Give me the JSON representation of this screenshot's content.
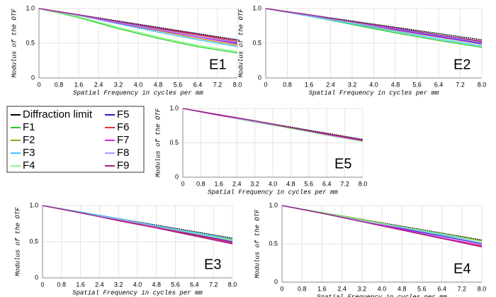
{
  "chart_data": [
    {
      "type": "line",
      "title": "E1",
      "xlabel": "Spatial Frequency in cycles per mm",
      "ylabel": "Modulus of the OTF",
      "x": [
        0,
        1.6,
        3.2,
        4.8,
        6.4,
        8
      ],
      "xlim": [
        0,
        8
      ],
      "ylim": [
        0,
        1
      ],
      "xticks": [
        0,
        0.8,
        1.6,
        2.4,
        3.2,
        {
          "value": 4,
          "label": "4.0"
        },
        4.8,
        5.6,
        6.4,
        7.2,
        {
          "value": 8,
          "label": "8.0"
        }
      ],
      "yticks": [
        0,
        0.5,
        {
          "value": 1,
          "label": "1.0"
        }
      ],
      "grid": true,
      "series": [
        {
          "name": "Diffraction limit",
          "color": "#000000",
          "values": [
            1,
            0.91,
            0.82,
            0.73,
            0.64,
            0.55
          ]
        },
        {
          "name": "F1",
          "color": "#22cc22",
          "values": [
            1,
            0.87,
            0.71,
            0.57,
            0.45,
            0.36
          ]
        },
        {
          "name": "F2",
          "color": "#a0a020",
          "values": [
            1,
            0.9,
            0.79,
            0.68,
            0.57,
            0.47
          ]
        },
        {
          "name": "F3",
          "color": "#40c0ff",
          "values": [
            1,
            0.9,
            0.78,
            0.66,
            0.55,
            0.45
          ]
        },
        {
          "name": "F4",
          "color": "#80ff80",
          "values": [
            1,
            0.88,
            0.73,
            0.59,
            0.47,
            0.38
          ]
        },
        {
          "name": "F5",
          "color": "#2020c0",
          "values": [
            1,
            0.9,
            0.8,
            0.7,
            0.6,
            0.5
          ]
        },
        {
          "name": "F6",
          "color": "#e03030",
          "values": [
            1,
            0.9,
            0.81,
            0.71,
            0.62,
            0.52
          ]
        },
        {
          "name": "F7",
          "color": "#e020e0",
          "values": [
            1,
            0.9,
            0.79,
            0.69,
            0.59,
            0.49
          ]
        },
        {
          "name": "F8",
          "color": "#a0a0ff",
          "values": [
            1,
            0.9,
            0.8,
            0.7,
            0.6,
            0.51
          ]
        },
        {
          "name": "F9",
          "color": "#a02080",
          "values": [
            1,
            0.91,
            0.81,
            0.72,
            0.63,
            0.54
          ]
        }
      ]
    },
    {
      "type": "line",
      "title": "E2",
      "xlabel": "Spatial Frequency in cycles per mm",
      "ylabel": "Modulus of the OTF",
      "x": [
        0,
        1.6,
        3.2,
        4.8,
        6.4,
        8
      ],
      "xlim": [
        0,
        8
      ],
      "ylim": [
        0,
        1
      ],
      "xticks": [
        0,
        0.8,
        1.6,
        2.4,
        3.2,
        {
          "value": 4,
          "label": "4.0"
        },
        4.8,
        5.6,
        6.4,
        7.2,
        {
          "value": 8,
          "label": "8.0"
        }
      ],
      "yticks": [
        0,
        0.5,
        {
          "value": 1,
          "label": "1.0"
        }
      ],
      "grid": true,
      "series": [
        {
          "color": "#000000",
          "values": [
            1,
            0.91,
            0.82,
            0.73,
            0.64,
            0.55
          ]
        },
        {
          "color": "#22cc22",
          "values": [
            1,
            0.89,
            0.77,
            0.65,
            0.54,
            0.44
          ]
        },
        {
          "color": "#a0a020",
          "values": [
            1,
            0.9,
            0.8,
            0.7,
            0.6,
            0.51
          ]
        },
        {
          "color": "#40c0ff",
          "values": [
            1,
            0.89,
            0.78,
            0.67,
            0.56,
            0.46
          ]
        },
        {
          "color": "#80ff80",
          "values": [
            1,
            0.9,
            0.79,
            0.68,
            0.58,
            0.48
          ]
        },
        {
          "color": "#2020c0",
          "values": [
            1,
            0.9,
            0.8,
            0.7,
            0.6,
            0.5
          ]
        },
        {
          "color": "#e03030",
          "values": [
            1,
            0.9,
            0.81,
            0.71,
            0.62,
            0.52
          ]
        },
        {
          "color": "#e020e0",
          "values": [
            1,
            0.9,
            0.8,
            0.69,
            0.59,
            0.49
          ]
        },
        {
          "color": "#a0a0ff",
          "values": [
            1,
            0.9,
            0.8,
            0.71,
            0.61,
            0.51
          ]
        },
        {
          "color": "#a02080",
          "values": [
            1,
            0.91,
            0.81,
            0.72,
            0.62,
            0.53
          ]
        }
      ]
    },
    {
      "type": "line",
      "title": "E5",
      "xlabel": "Spatial Frequency in cycles per mm",
      "ylabel": "Modulus of the OTF",
      "x": [
        0,
        1.6,
        3.2,
        4.8,
        6.4,
        8
      ],
      "xlim": [
        0,
        8
      ],
      "ylim": [
        0,
        1
      ],
      "xticks": [
        0,
        0.8,
        1.6,
        2.4,
        3.2,
        {
          "value": 4,
          "label": "4.0"
        },
        4.8,
        5.6,
        6.4,
        7.2,
        {
          "value": 8,
          "label": "8.0"
        }
      ],
      "yticks": [
        0,
        0.5,
        {
          "value": 1,
          "label": "1.0"
        }
      ],
      "grid": true,
      "series": [
        {
          "color": "#000000",
          "values": [
            1,
            0.91,
            0.82,
            0.73,
            0.64,
            0.55
          ]
        },
        {
          "color": "#22cc22",
          "values": [
            1,
            0.9,
            0.81,
            0.71,
            0.62,
            0.52
          ]
        },
        {
          "color": "#a0a020",
          "values": [
            1,
            0.91,
            0.81,
            0.72,
            0.63,
            0.54
          ]
        },
        {
          "color": "#40c0ff",
          "values": [
            1,
            0.9,
            0.81,
            0.71,
            0.62,
            0.53
          ]
        },
        {
          "color": "#80ff80",
          "values": [
            1,
            0.9,
            0.8,
            0.71,
            0.61,
            0.52
          ]
        },
        {
          "color": "#2020c0",
          "values": [
            1,
            0.91,
            0.81,
            0.72,
            0.63,
            0.54
          ]
        },
        {
          "color": "#e03030",
          "values": [
            1,
            0.91,
            0.82,
            0.72,
            0.63,
            0.54
          ]
        },
        {
          "color": "#e020e0",
          "values": [
            1,
            0.9,
            0.81,
            0.72,
            0.62,
            0.53
          ]
        },
        {
          "color": "#a0a0ff",
          "values": [
            1,
            0.91,
            0.81,
            0.72,
            0.63,
            0.54
          ]
        },
        {
          "color": "#a02080",
          "values": [
            1,
            0.91,
            0.82,
            0.72,
            0.63,
            0.54
          ]
        }
      ]
    },
    {
      "type": "line",
      "title": "E3",
      "xlabel": "Spatial Frequency in cycles per mm",
      "ylabel": "Modulus of the OTF",
      "x": [
        0,
        1.6,
        3.2,
        4.8,
        6.4,
        8
      ],
      "xlim": [
        0,
        8
      ],
      "ylim": [
        0,
        1
      ],
      "xticks": [
        0,
        0.8,
        1.6,
        2.4,
        3.2,
        {
          "value": 4,
          "label": "4.0"
        },
        4.8,
        5.6,
        6.4,
        7.2,
        {
          "value": 8,
          "label": "8.0"
        }
      ],
      "yticks": [
        0,
        0.5,
        {
          "value": 1,
          "label": "1.0"
        }
      ],
      "grid": true,
      "series": [
        {
          "color": "#000000",
          "values": [
            1,
            0.91,
            0.82,
            0.73,
            0.64,
            0.55
          ]
        },
        {
          "color": "#22cc22",
          "values": [
            1,
            0.9,
            0.8,
            0.7,
            0.6,
            0.5
          ]
        },
        {
          "color": "#a0a020",
          "values": [
            1,
            0.91,
            0.81,
            0.72,
            0.63,
            0.53
          ]
        },
        {
          "color": "#40c0ff",
          "values": [
            1,
            0.91,
            0.82,
            0.72,
            0.63,
            0.54
          ]
        },
        {
          "color": "#80ff80",
          "values": [
            1,
            0.9,
            0.81,
            0.71,
            0.62,
            0.52
          ]
        },
        {
          "color": "#2020c0",
          "values": [
            1,
            0.9,
            0.8,
            0.7,
            0.6,
            0.5
          ]
        },
        {
          "color": "#e03030",
          "values": [
            1,
            0.9,
            0.8,
            0.7,
            0.59,
            0.49
          ]
        },
        {
          "color": "#e020e0",
          "values": [
            1,
            0.9,
            0.79,
            0.69,
            0.58,
            0.48
          ]
        },
        {
          "color": "#a0a0ff",
          "values": [
            1,
            0.9,
            0.81,
            0.71,
            0.61,
            0.51
          ]
        },
        {
          "color": "#a02080",
          "values": [
            1,
            0.9,
            0.79,
            0.69,
            0.58,
            0.47
          ]
        }
      ]
    },
    {
      "type": "line",
      "title": "E4",
      "xlabel": "Spatial Frequency in cycles per mm",
      "ylabel": "Modulus of the OTF",
      "x": [
        0,
        1.6,
        3.2,
        4.8,
        6.4,
        8
      ],
      "xlim": [
        0,
        8
      ],
      "ylim": [
        0,
        1
      ],
      "xticks": [
        0,
        0.8,
        1.6,
        2.4,
        3.2,
        {
          "value": 4,
          "label": "4.0"
        },
        4.8,
        5.6,
        6.4,
        7.2,
        {
          "value": 8,
          "label": "8.0"
        }
      ],
      "yticks": [
        0,
        0.5,
        {
          "value": 1,
          "label": "1.0"
        }
      ],
      "grid": true,
      "series": [
        {
          "color": "#000000",
          "values": [
            1,
            0.91,
            0.82,
            0.73,
            0.64,
            0.55
          ]
        },
        {
          "color": "#22cc22",
          "values": [
            1,
            0.91,
            0.81,
            0.72,
            0.63,
            0.54
          ]
        },
        {
          "color": "#a0a020",
          "values": [
            1,
            0.91,
            0.82,
            0.72,
            0.63,
            0.54
          ]
        },
        {
          "color": "#40c0ff",
          "values": [
            1,
            0.91,
            0.81,
            0.72,
            0.62,
            0.53
          ]
        },
        {
          "color": "#80ff80",
          "values": [
            1,
            0.91,
            0.81,
            0.72,
            0.63,
            0.53
          ]
        },
        {
          "color": "#2020c0",
          "values": [
            1,
            0.9,
            0.8,
            0.7,
            0.6,
            0.5
          ]
        },
        {
          "color": "#e03030",
          "values": [
            1,
            0.9,
            0.79,
            0.68,
            0.57,
            0.47
          ]
        },
        {
          "color": "#e020e0",
          "values": [
            1,
            0.9,
            0.8,
            0.69,
            0.58,
            0.48
          ]
        },
        {
          "color": "#a0a0ff",
          "values": [
            1,
            0.9,
            0.8,
            0.71,
            0.61,
            0.51
          ]
        },
        {
          "color": "#a02080",
          "values": [
            1,
            0.9,
            0.79,
            0.68,
            0.57,
            0.46
          ]
        }
      ]
    }
  ]
}
